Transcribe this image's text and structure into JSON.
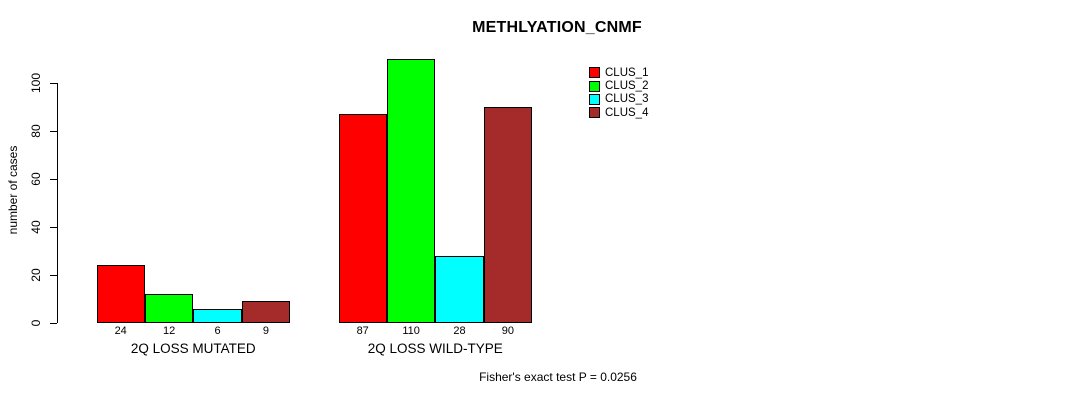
{
  "chart_data": {
    "type": "bar",
    "title": "METHLYATION_CNMF",
    "ylabel": "number of cases",
    "xlabel": "",
    "yticks": [
      0,
      20,
      40,
      60,
      80,
      100
    ],
    "ylim": [
      0,
      110
    ],
    "grid": false,
    "legend_position": "top-right",
    "categories": [
      "2Q LOSS MUTATED",
      "2Q LOSS WILD-TYPE"
    ],
    "series": [
      {
        "name": "CLUS_1",
        "color": "#FF0000",
        "values": [
          24,
          87
        ]
      },
      {
        "name": "CLUS_2",
        "color": "#00FF00",
        "values": [
          12,
          110
        ]
      },
      {
        "name": "CLUS_3",
        "color": "#00FFFF",
        "values": [
          6,
          28
        ]
      },
      {
        "name": "CLUS_4",
        "color": "#A52A2A",
        "values": [
          9,
          90
        ]
      }
    ],
    "bar_value_labels": [
      [
        24,
        12,
        6,
        9
      ],
      [
        87,
        110,
        28,
        90
      ]
    ],
    "annotation": "Fisher's exact test P = 0.0256"
  }
}
